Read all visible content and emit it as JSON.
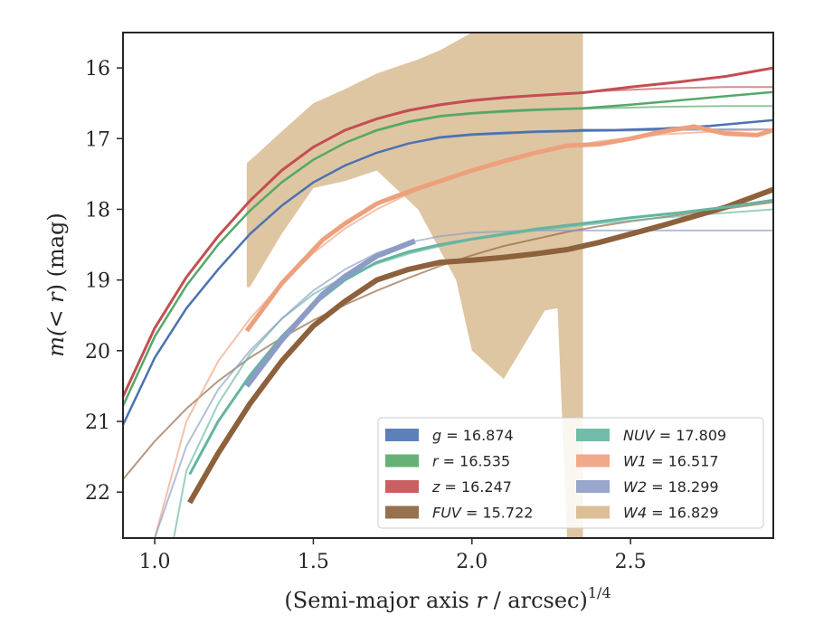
{
  "chart_data": {
    "type": "line",
    "xlabel_prefix": "(Semi-major axis ",
    "xlabel_var": "r",
    "xlabel_suffix": " / arcsec)",
    "xlabel_exp": "1/4",
    "ylabel_prefix": "m(< ",
    "ylabel_var": "r",
    "ylabel_suffix": ") (mag)",
    "xlim": [
      0.9,
      2.95
    ],
    "ylim": [
      22.65,
      15.5
    ],
    "y_inverted": true,
    "xticks": [
      1.0,
      1.5,
      2.0,
      2.5
    ],
    "xtick_labels": [
      "1.0",
      "1.5",
      "2.0",
      "2.5"
    ],
    "yticks": [
      16,
      17,
      18,
      19,
      20,
      21,
      22
    ],
    "ytick_labels": [
      "16",
      "17",
      "18",
      "19",
      "20",
      "21",
      "22"
    ],
    "grid": false,
    "legend_placement": "lower-right",
    "legend_columns": 2,
    "series": [
      {
        "name": "g",
        "legend_value": "16.874",
        "color": "#4c72b0",
        "data": [
          [
            0.9,
            21.05
          ],
          [
            1.0,
            20.1
          ],
          [
            1.1,
            19.4
          ],
          [
            1.2,
            18.85
          ],
          [
            1.3,
            18.35
          ],
          [
            1.4,
            17.95
          ],
          [
            1.5,
            17.62
          ],
          [
            1.6,
            17.38
          ],
          [
            1.7,
            17.2
          ],
          [
            1.8,
            17.07
          ],
          [
            1.9,
            16.98
          ],
          [
            2.0,
            16.94
          ],
          [
            2.1,
            16.92
          ],
          [
            2.2,
            16.9
          ],
          [
            2.3,
            16.89
          ],
          [
            2.35,
            16.88
          ],
          [
            2.45,
            16.88
          ],
          [
            2.6,
            16.86
          ],
          [
            2.75,
            16.82
          ],
          [
            2.95,
            16.74
          ]
        ],
        "model": [
          [
            0.9,
            21.05
          ],
          [
            1.0,
            20.1
          ],
          [
            1.1,
            19.4
          ],
          [
            1.2,
            18.85
          ],
          [
            1.3,
            18.35
          ],
          [
            1.4,
            17.95
          ],
          [
            1.5,
            17.62
          ],
          [
            1.6,
            17.38
          ],
          [
            1.7,
            17.2
          ],
          [
            1.8,
            17.07
          ],
          [
            1.9,
            16.99
          ],
          [
            2.0,
            16.95
          ],
          [
            2.2,
            16.91
          ],
          [
            2.4,
            16.89
          ],
          [
            2.6,
            16.88
          ],
          [
            2.8,
            16.87
          ],
          [
            2.95,
            16.87
          ]
        ]
      },
      {
        "name": "r",
        "legend_value": "16.535",
        "color": "#55a868",
        "data": [
          [
            0.9,
            20.78
          ],
          [
            1.0,
            19.8
          ],
          [
            1.1,
            19.08
          ],
          [
            1.2,
            18.5
          ],
          [
            1.3,
            18.02
          ],
          [
            1.4,
            17.62
          ],
          [
            1.5,
            17.3
          ],
          [
            1.6,
            17.06
          ],
          [
            1.7,
            16.88
          ],
          [
            1.8,
            16.76
          ],
          [
            1.9,
            16.68
          ],
          [
            2.0,
            16.64
          ],
          [
            2.1,
            16.61
          ],
          [
            2.2,
            16.59
          ],
          [
            2.35,
            16.57
          ],
          [
            2.5,
            16.52
          ],
          [
            2.65,
            16.46
          ],
          [
            2.8,
            16.4
          ],
          [
            2.95,
            16.34
          ]
        ],
        "model": [
          [
            0.9,
            20.78
          ],
          [
            1.0,
            19.8
          ],
          [
            1.1,
            19.08
          ],
          [
            1.2,
            18.5
          ],
          [
            1.3,
            18.02
          ],
          [
            1.4,
            17.62
          ],
          [
            1.5,
            17.3
          ],
          [
            1.6,
            17.06
          ],
          [
            1.7,
            16.89
          ],
          [
            1.8,
            16.77
          ],
          [
            1.9,
            16.69
          ],
          [
            2.0,
            16.65
          ],
          [
            2.2,
            16.6
          ],
          [
            2.4,
            16.57
          ],
          [
            2.6,
            16.55
          ],
          [
            2.8,
            16.54
          ],
          [
            2.95,
            16.54
          ]
        ]
      },
      {
        "name": "z",
        "legend_value": "16.247",
        "color": "#c44e52",
        "data": [
          [
            0.9,
            20.65
          ],
          [
            1.0,
            19.68
          ],
          [
            1.1,
            18.96
          ],
          [
            1.2,
            18.38
          ],
          [
            1.3,
            17.88
          ],
          [
            1.4,
            17.45
          ],
          [
            1.5,
            17.12
          ],
          [
            1.6,
            16.88
          ],
          [
            1.7,
            16.72
          ],
          [
            1.8,
            16.6
          ],
          [
            1.9,
            16.52
          ],
          [
            2.0,
            16.46
          ],
          [
            2.1,
            16.42
          ],
          [
            2.2,
            16.39
          ],
          [
            2.35,
            16.35
          ],
          [
            2.5,
            16.27
          ],
          [
            2.65,
            16.2
          ],
          [
            2.8,
            16.12
          ],
          [
            2.95,
            16.0
          ]
        ],
        "model": [
          [
            0.9,
            20.65
          ],
          [
            1.0,
            19.68
          ],
          [
            1.1,
            18.96
          ],
          [
            1.2,
            18.38
          ],
          [
            1.3,
            17.88
          ],
          [
            1.4,
            17.45
          ],
          [
            1.5,
            17.12
          ],
          [
            1.6,
            16.88
          ],
          [
            1.7,
            16.72
          ],
          [
            1.8,
            16.61
          ],
          [
            1.9,
            16.53
          ],
          [
            2.0,
            16.47
          ],
          [
            2.2,
            16.39
          ],
          [
            2.4,
            16.33
          ],
          [
            2.6,
            16.29
          ],
          [
            2.8,
            16.27
          ],
          [
            2.95,
            16.27
          ]
        ]
      },
      {
        "name": "FUV",
        "legend_value": "15.722",
        "color": "#8c613c",
        "data": [
          [
            1.11,
            22.15
          ],
          [
            1.2,
            21.45
          ],
          [
            1.3,
            20.75
          ],
          [
            1.4,
            20.15
          ],
          [
            1.5,
            19.65
          ],
          [
            1.6,
            19.3
          ],
          [
            1.7,
            19.0
          ],
          [
            1.8,
            18.85
          ],
          [
            1.9,
            18.75
          ],
          [
            2.0,
            18.72
          ],
          [
            2.1,
            18.68
          ],
          [
            2.2,
            18.63
          ],
          [
            2.3,
            18.57
          ],
          [
            2.4,
            18.47
          ],
          [
            2.5,
            18.35
          ],
          [
            2.6,
            18.23
          ],
          [
            2.7,
            18.1
          ],
          [
            2.8,
            17.97
          ],
          [
            2.95,
            17.72
          ]
        ],
        "model": [
          [
            0.9,
            21.82
          ],
          [
            1.0,
            21.28
          ],
          [
            1.1,
            20.82
          ],
          [
            1.2,
            20.43
          ],
          [
            1.3,
            20.1
          ],
          [
            1.4,
            19.82
          ],
          [
            1.5,
            19.57
          ],
          [
            1.6,
            19.35
          ],
          [
            1.7,
            19.15
          ],
          [
            1.8,
            18.97
          ],
          [
            1.9,
            18.8
          ],
          [
            2.0,
            18.65
          ],
          [
            2.1,
            18.52
          ],
          [
            2.2,
            18.42
          ],
          [
            2.3,
            18.32
          ],
          [
            2.4,
            18.24
          ],
          [
            2.5,
            18.17
          ],
          [
            2.6,
            18.11
          ],
          [
            2.7,
            18.05
          ],
          [
            2.8,
            17.99
          ],
          [
            2.95,
            17.9
          ]
        ]
      },
      {
        "name": "NUV",
        "legend_value": "17.809",
        "color": "#64b5a0",
        "data": [
          [
            1.11,
            21.75
          ],
          [
            1.2,
            21.0
          ],
          [
            1.3,
            20.35
          ],
          [
            1.4,
            19.8
          ],
          [
            1.5,
            19.35
          ],
          [
            1.6,
            19.0
          ],
          [
            1.7,
            18.75
          ],
          [
            1.8,
            18.6
          ],
          [
            1.9,
            18.5
          ],
          [
            2.0,
            18.42
          ],
          [
            2.1,
            18.35
          ],
          [
            2.2,
            18.28
          ],
          [
            2.35,
            18.2
          ],
          [
            2.5,
            18.12
          ],
          [
            2.65,
            18.05
          ],
          [
            2.8,
            17.97
          ],
          [
            2.95,
            17.87
          ]
        ],
        "model": [
          [
            1.06,
            22.65
          ],
          [
            1.1,
            21.7
          ],
          [
            1.2,
            20.75
          ],
          [
            1.3,
            20.05
          ],
          [
            1.4,
            19.55
          ],
          [
            1.5,
            19.2
          ],
          [
            1.6,
            18.95
          ],
          [
            1.7,
            18.77
          ],
          [
            1.8,
            18.63
          ],
          [
            1.9,
            18.52
          ],
          [
            2.0,
            18.43
          ],
          [
            2.2,
            18.3
          ],
          [
            2.4,
            18.2
          ],
          [
            2.6,
            18.12
          ],
          [
            2.8,
            18.05
          ],
          [
            2.95,
            18.0
          ]
        ]
      },
      {
        "name": "W1",
        "legend_value": "16.517",
        "color": "#eea07d",
        "data": [
          [
            1.29,
            19.72
          ],
          [
            1.4,
            19.05
          ],
          [
            1.53,
            18.43
          ],
          [
            1.6,
            18.2
          ],
          [
            1.7,
            17.92
          ],
          [
            1.8,
            17.75
          ],
          [
            1.9,
            17.6
          ],
          [
            2.0,
            17.45
          ],
          [
            2.1,
            17.32
          ],
          [
            2.2,
            17.2
          ],
          [
            2.3,
            17.1
          ],
          [
            2.4,
            17.08
          ],
          [
            2.5,
            17.0
          ],
          [
            2.6,
            16.9
          ],
          [
            2.7,
            16.83
          ],
          [
            2.8,
            16.93
          ],
          [
            2.9,
            16.95
          ],
          [
            2.95,
            16.88
          ]
        ],
        "model": [
          [
            1.0,
            22.65
          ],
          [
            1.1,
            21.0
          ],
          [
            1.2,
            20.15
          ],
          [
            1.3,
            19.55
          ],
          [
            1.4,
            19.05
          ],
          [
            1.5,
            18.62
          ],
          [
            1.6,
            18.27
          ],
          [
            1.7,
            18.0
          ],
          [
            1.8,
            17.78
          ],
          [
            1.9,
            17.6
          ],
          [
            2.0,
            17.45
          ],
          [
            2.2,
            17.2
          ],
          [
            2.4,
            17.04
          ],
          [
            2.6,
            16.94
          ],
          [
            2.8,
            16.89
          ],
          [
            2.95,
            16.87
          ]
        ]
      },
      {
        "name": "W2",
        "legend_value": "18.299",
        "color": "#8c9cc4",
        "data": [
          [
            1.29,
            20.5
          ],
          [
            1.4,
            19.85
          ],
          [
            1.53,
            19.2
          ],
          [
            1.6,
            18.95
          ],
          [
            1.7,
            18.66
          ],
          [
            1.82,
            18.45
          ]
        ],
        "model": [
          [
            1.0,
            22.65
          ],
          [
            1.1,
            21.35
          ],
          [
            1.2,
            20.55
          ],
          [
            1.3,
            20.0
          ],
          [
            1.4,
            19.55
          ],
          [
            1.5,
            19.15
          ],
          [
            1.6,
            18.85
          ],
          [
            1.7,
            18.62
          ],
          [
            1.8,
            18.47
          ],
          [
            1.9,
            18.38
          ],
          [
            2.0,
            18.33
          ],
          [
            2.2,
            18.3
          ],
          [
            2.5,
            18.3
          ],
          [
            2.95,
            18.3
          ]
        ]
      }
    ],
    "band": {
      "name": "W4",
      "legend_value": "16.829",
      "color": "#d6b88c",
      "upper": [
        [
          1.29,
          17.35
        ],
        [
          1.4,
          16.9
        ],
        [
          1.5,
          16.5
        ],
        [
          1.6,
          16.3
        ],
        [
          1.7,
          16.08
        ],
        [
          1.83,
          15.88
        ],
        [
          1.9,
          15.75
        ],
        [
          2.0,
          15.5
        ],
        [
          2.35,
          15.5
        ]
      ],
      "lower": [
        [
          2.35,
          22.65
        ],
        [
          2.3,
          22.65
        ],
        [
          2.27,
          19.4
        ],
        [
          2.23,
          19.43
        ],
        [
          2.1,
          20.4
        ],
        [
          2.0,
          20.0
        ],
        [
          1.95,
          19.0
        ],
        [
          1.83,
          18.0
        ],
        [
          1.7,
          17.45
        ],
        [
          1.6,
          17.6
        ],
        [
          1.5,
          17.7
        ],
        [
          1.4,
          18.35
        ],
        [
          1.3,
          19.1
        ],
        [
          1.29,
          19.1
        ]
      ]
    },
    "legend_entries": [
      {
        "var": "g",
        "text": " = 16.874",
        "color": "#4c72b0"
      },
      {
        "var": "r",
        "text": " = 16.535",
        "color": "#55a868"
      },
      {
        "var": "z",
        "text": " = 16.247",
        "color": "#c44e52"
      },
      {
        "var": "FUV",
        "text": " = 15.722",
        "color": "#8c613c"
      },
      {
        "var": "NUV",
        "text": " = 17.809",
        "color": "#64b5a0"
      },
      {
        "var": "W1",
        "text": " = 16.517",
        "color": "#eea07d"
      },
      {
        "var": "W2",
        "text": " = 18.299",
        "color": "#8c9cc4"
      },
      {
        "var": "W4",
        "text": " = 16.829",
        "color": "#d6b88c"
      }
    ]
  }
}
